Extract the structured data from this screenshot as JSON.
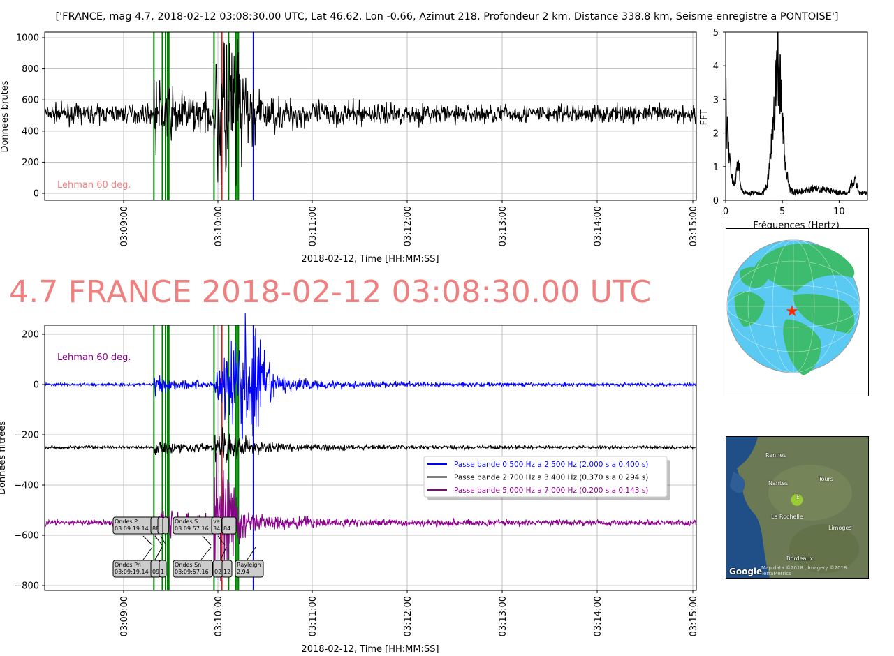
{
  "page": {
    "title": "['FRANCE, mag 4.7, 2018-02-12 03:08:30.00 UTC, Lat 46.62, Lon -0.66, Azimut 218, Profondeur 2 km, Distance 338.8 km, Seisme enregistre a PONTOISE']",
    "headline": "4.7 FRANCE 2018-02-12 03:08:30.00 UTC"
  },
  "chart_data": [
    {
      "type": "line",
      "title": "",
      "xlabel": "2018-02-12, Time [HH:MM:SS]",
      "ylabel": "Donnees brutes",
      "x_tick_labels": [
        "03:09:00",
        "03:10:00",
        "03:11:00",
        "03:12:00",
        "03:13:00",
        "03:14:00",
        "03:15:00"
      ],
      "y_tick_labels": [
        "0",
        "200",
        "400",
        "600",
        "800",
        "1000"
      ],
      "ylim": [
        -50,
        1030
      ],
      "grid": true,
      "annotation": "Lehman 60 deg.",
      "annotation_color": "#f08080",
      "series": [
        {
          "color": "#000000",
          "baseline": 510,
          "noise_amplitude": 50,
          "max_value": 980,
          "min_value": 0
        }
      ]
    },
    {
      "type": "line",
      "title": "",
      "xlabel": "2018-02-12, Time [HH:MM:SS]",
      "ylabel": "Donnees filtrees",
      "x_tick_labels": [
        "03:09:00",
        "03:10:00",
        "03:11:00",
        "03:12:00",
        "03:13:00",
        "03:14:00",
        "03:15:00"
      ],
      "y_tick_labels": [
        "−800",
        "−600",
        "−400",
        "−200",
        "0",
        "200"
      ],
      "ylim": [
        -830,
        235
      ],
      "grid": true,
      "annotation": "Lehman 60 deg.",
      "annotation_color": "#8b008b",
      "legend_position": "center-right",
      "series": [
        {
          "name": "Passe bande 0.500 Hz a 2.500 Hz (2.000 s a 0.400 s)",
          "color": "#0000ff",
          "offset": 0
        },
        {
          "name": "Passe bande 2.700 Hz a 3.400 Hz (0.370 s a 0.294 s)",
          "color": "#000000",
          "offset": -250
        },
        {
          "name": "Passe bande 5.000 Hz a 7.000 Hz (0.200 s a 0.143 s)",
          "color": "#8b008b",
          "offset": -550
        }
      ],
      "phase_labels_top": [
        {
          "name": "Ondes P",
          "time": "03:09:19.14",
          "extra": "88"
        },
        {
          "name": "Ondes S",
          "time": "03:09:57.16",
          "extra": "ve",
          "extra2": "34",
          "extra3": "84"
        }
      ],
      "phase_labels_bottom": [
        {
          "name": "Ondes Pn",
          "time": "03:09:19.14",
          "extra": "09",
          "extra2": "1"
        },
        {
          "name": "Ondes Sn",
          "time": "03:09:57.16",
          "extra": "02",
          "extra2": "12"
        },
        {
          "name": "Rayleigh",
          "time": "2.94"
        }
      ]
    },
    {
      "type": "line",
      "title": "",
      "xlabel": "Fréquences (Hertz)",
      "ylabel": "FFT",
      "x_tick_labels": [
        "0",
        "5",
        "10"
      ],
      "y_tick_labels": [
        "0",
        "1",
        "2",
        "3",
        "4",
        "5"
      ],
      "xlim": [
        0,
        12.5
      ],
      "ylim": [
        0,
        5
      ],
      "series": [
        {
          "color": "#000000",
          "peak_frequency": 4.6,
          "peak_value": 5.0
        }
      ]
    }
  ],
  "markers": {
    "green_lines_seconds": [
      19.14,
      24.5,
      26.5,
      27.8,
      28.6,
      57.16,
      66.4,
      70.8,
      71.7,
      72.6
    ],
    "red_line_seconds": 62.2,
    "blue_line_seconds": 82.0,
    "colors": {
      "green": "#008000",
      "red": "#ff0000",
      "blue": "#0000ff"
    }
  },
  "map": {
    "labels": [
      "Rennes",
      "Nantes",
      "Tours",
      "La Rochelle",
      "Limoges",
      "Bordeaux"
    ],
    "marker": "E",
    "logo": "Google",
    "footer": "Map data ©2018 , Imagery ©2018 TerraMetrics"
  },
  "icons": {
    "epicenter_star": "star-icon",
    "map_pin": "map-pin-icon"
  }
}
